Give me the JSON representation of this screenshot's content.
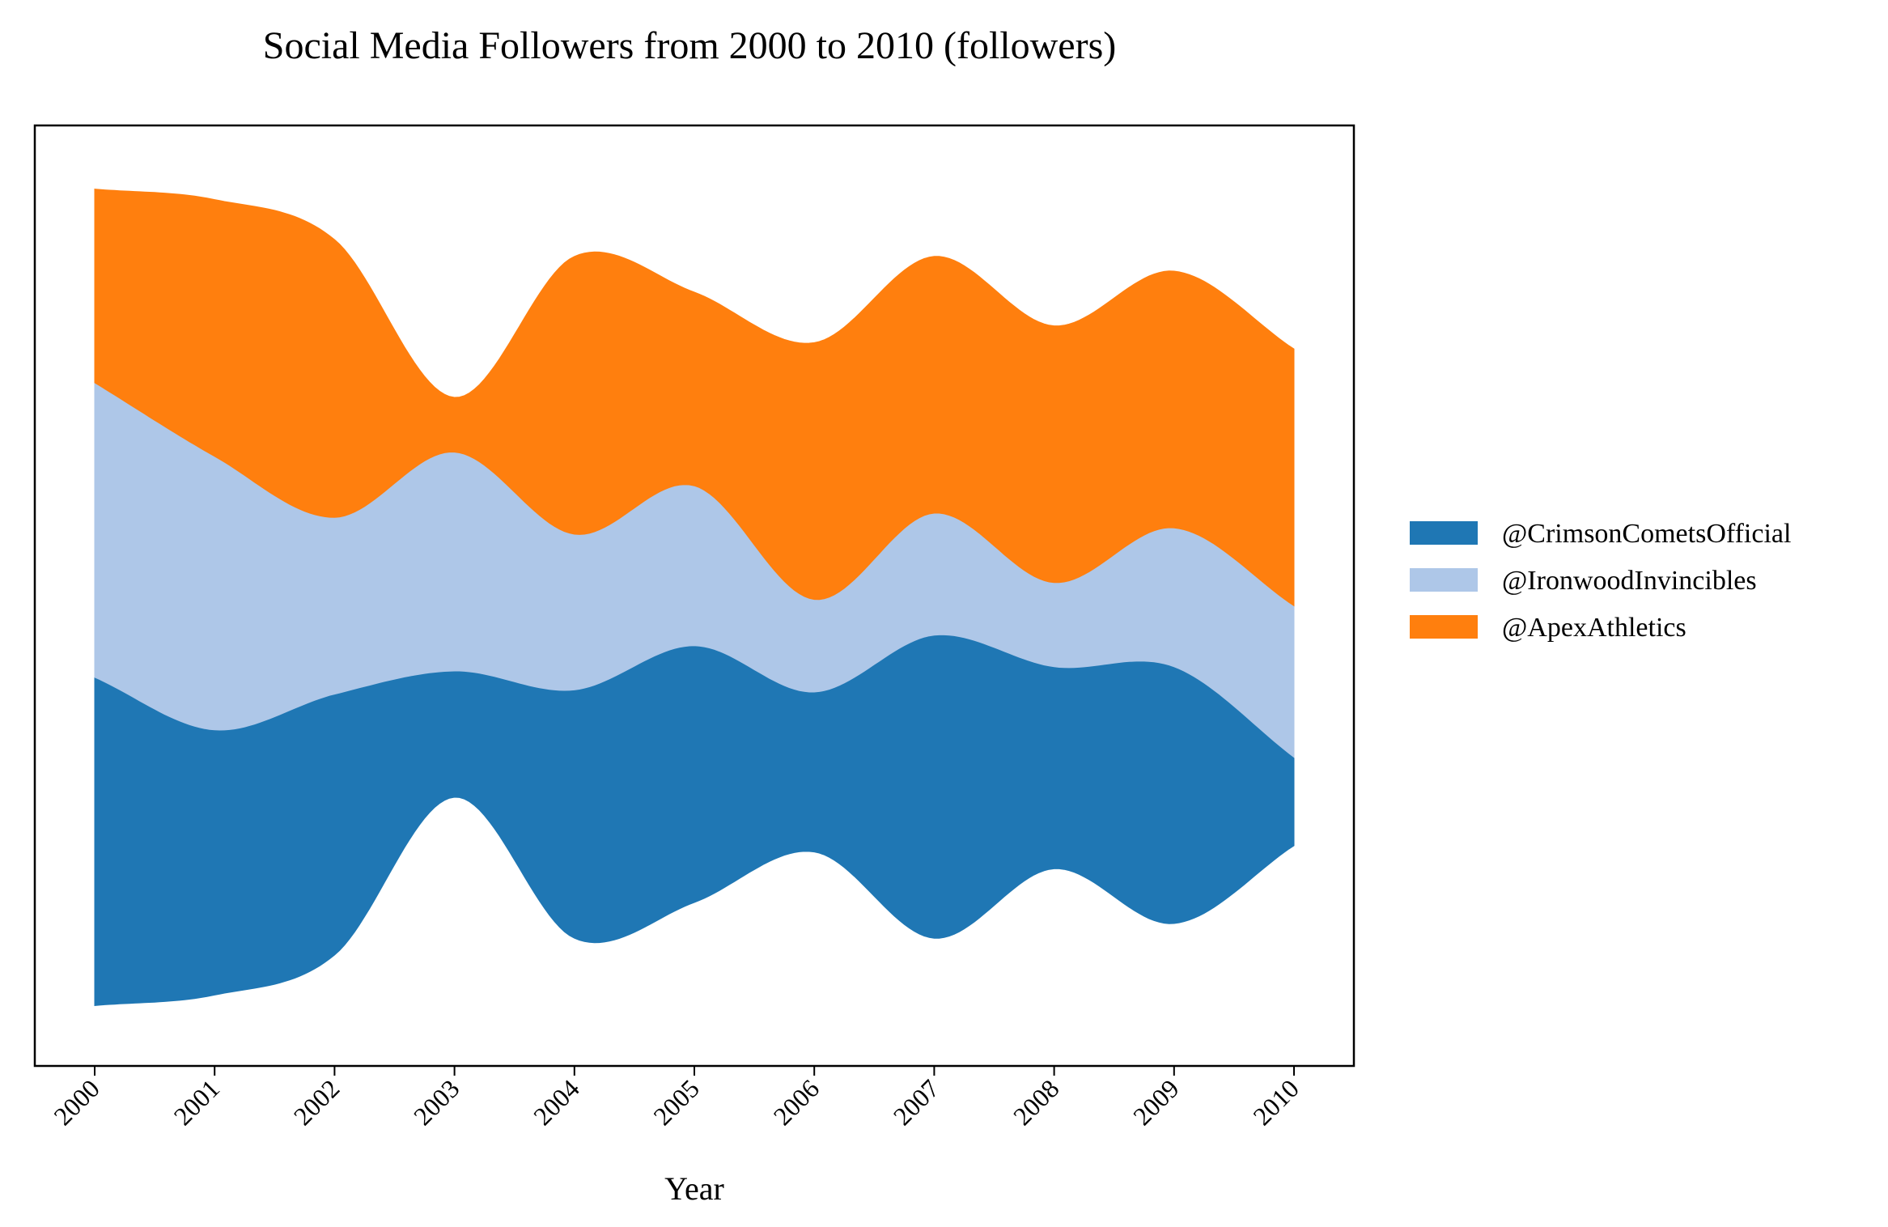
{
  "chart_data": {
    "type": "area",
    "subtype": "streamgraph",
    "title": "Social Media Followers from 2000 to 2010 (followers)",
    "xlabel": "Year",
    "ylabel": "",
    "x": [
      "2000",
      "2001",
      "2002",
      "2003",
      "2004",
      "2005",
      "2006",
      "2007",
      "2008",
      "2009",
      "2010"
    ],
    "series": [
      {
        "name": "@CrimsonCometsOfficial",
        "color": "#1f77b4",
        "values": [
          7800,
          6300,
          6200,
          3000,
          5900,
          6100,
          3800,
          7200,
          4800,
          6100,
          2100
        ]
      },
      {
        "name": "@IronwoodInvincibles",
        "color": "#aec7e8",
        "values": [
          7000,
          6500,
          4200,
          5200,
          3700,
          3800,
          2200,
          2900,
          2000,
          3300,
          3600
        ]
      },
      {
        "name": "@ApexAthletics",
        "color": "#ff7f0e",
        "values": [
          4600,
          6100,
          6600,
          1300,
          6600,
          4600,
          6100,
          6100,
          6100,
          6100,
          6100
        ]
      }
    ],
    "grid": false,
    "legend": "right",
    "yaxis_visible": false
  }
}
